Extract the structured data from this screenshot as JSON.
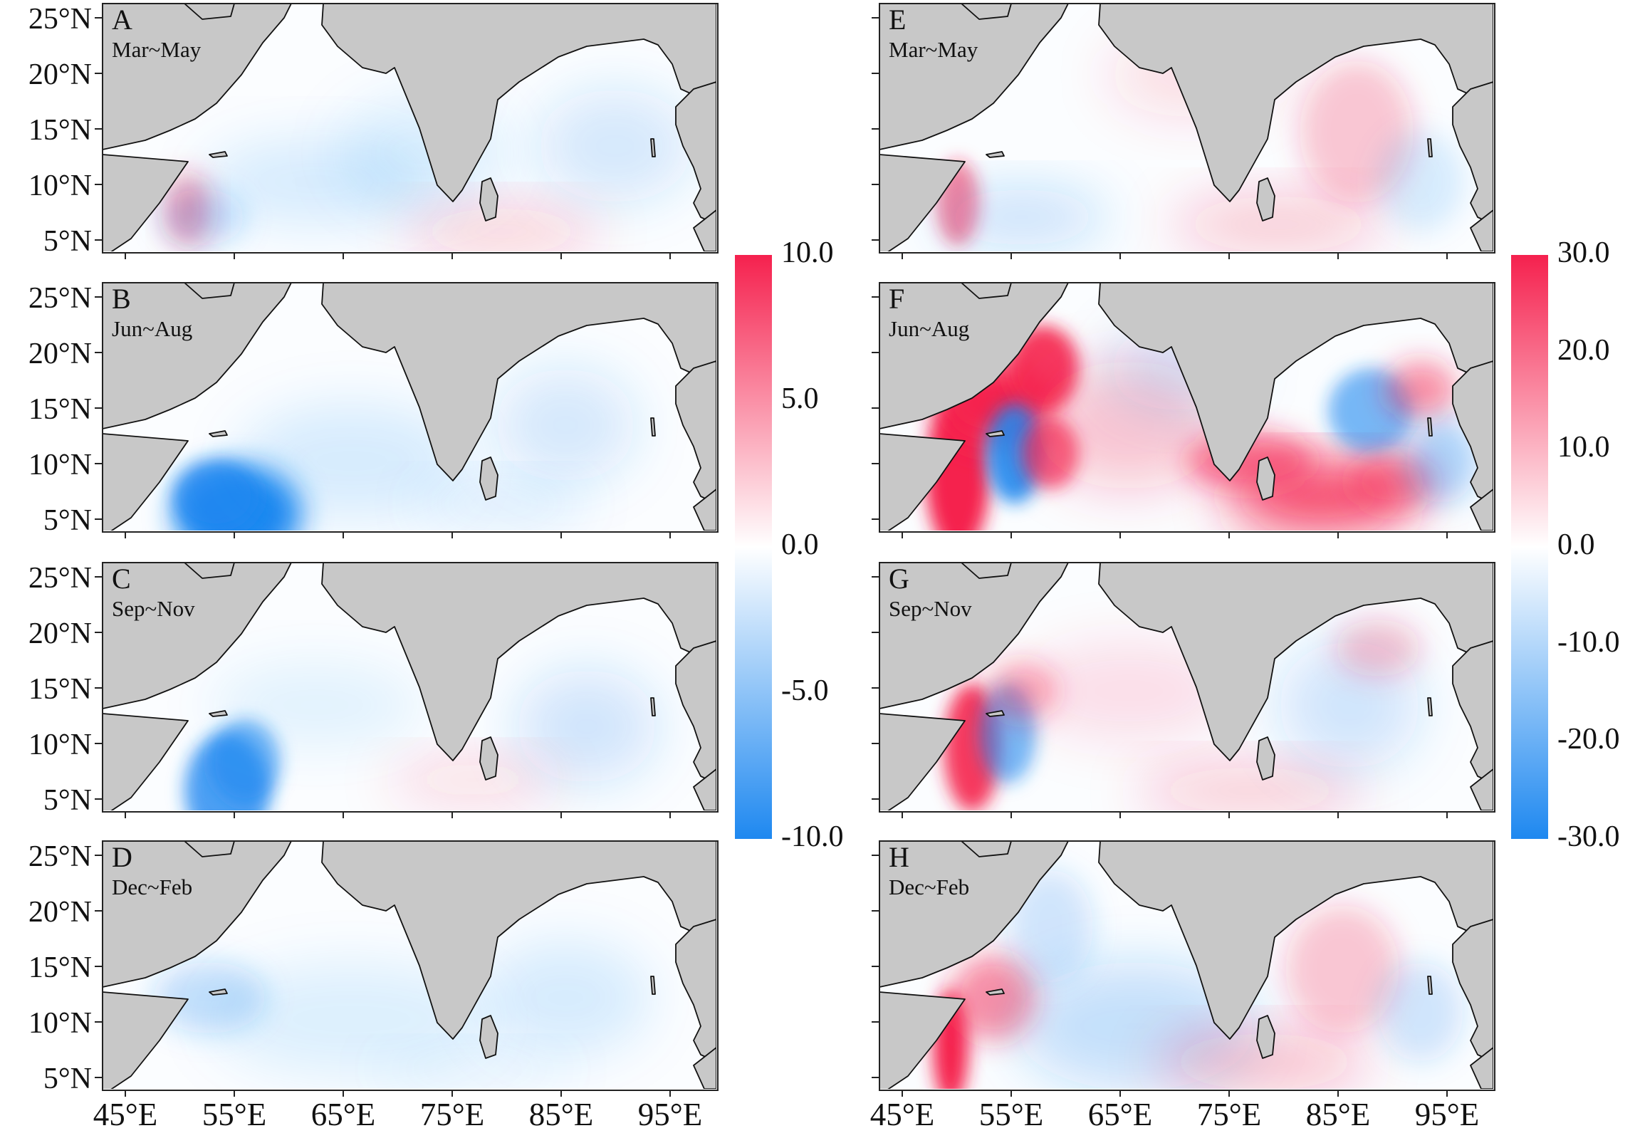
{
  "figure": {
    "panels": [
      {
        "letter": "A",
        "season": "Mar~May",
        "column": "left"
      },
      {
        "letter": "B",
        "season": "Jun~Aug",
        "column": "left"
      },
      {
        "letter": "C",
        "season": "Sep~Nov",
        "column": "left"
      },
      {
        "letter": "D",
        "season": "Dec~Feb",
        "column": "left"
      },
      {
        "letter": "E",
        "season": "Mar~May",
        "column": "right"
      },
      {
        "letter": "F",
        "season": "Jun~Aug",
        "column": "right"
      },
      {
        "letter": "G",
        "season": "Sep~Nov",
        "column": "right"
      },
      {
        "letter": "H",
        "season": "Dec~Feb",
        "column": "right"
      }
    ],
    "latitude_labels": [
      "25°N",
      "20°N",
      "15°N",
      "10°N",
      "5°N"
    ],
    "longitude_labels": [
      "45°E",
      "55°E",
      "65°E",
      "75°E",
      "85°E",
      "95°E"
    ],
    "colorbars": {
      "left": {
        "labels": [
          "10.0",
          "5.0",
          "0.0",
          "-5.0",
          "-10.0"
        ],
        "min": -10,
        "max": 10
      },
      "right": {
        "labels": [
          "30.0",
          "20.0",
          "10.0",
          "0.0",
          "-10.0",
          "-20.0",
          "-30.0"
        ],
        "min": -30,
        "max": 30
      }
    },
    "colors": {
      "positive": "#f5214e",
      "negative": "#1e88f0",
      "zero": "#ffffff",
      "land": "#c8c8c8",
      "coast": "#111111"
    }
  }
}
